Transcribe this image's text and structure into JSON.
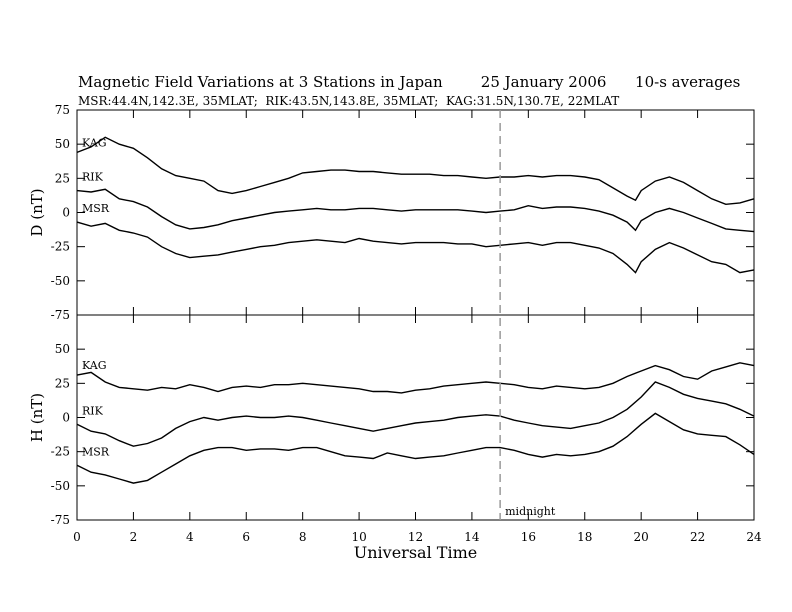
{
  "title": "Magnetic Field Variations at 3 Stations in Japan        25 January 2006      10-s averages",
  "subtitle": "MSR:44.4N,142.3E, 35MLAT;  RIK:43.5N,143.8E, 35MLAT;  KAG:31.5N,130.7E, 22MLAT",
  "chart_data": {
    "type": "line",
    "xlabel": "Universal Time",
    "xlim": [
      0,
      24
    ],
    "xticks": [
      0,
      2,
      4,
      6,
      8,
      10,
      12,
      14,
      16,
      18,
      20,
      22,
      24
    ],
    "annotation": {
      "text": "midnight",
      "x": 15
    },
    "panels": [
      {
        "ylabel": "D (nT)",
        "ylim": [
          -75,
          75
        ],
        "yticks": [
          75,
          50,
          25,
          0,
          -25,
          -50,
          -75
        ],
        "series": [
          {
            "name": "KAG",
            "x": [
              0,
              0.5,
              1,
              1.5,
              2,
              2.5,
              3,
              3.5,
              4,
              4.5,
              5,
              5.5,
              6,
              6.5,
              7,
              7.5,
              8,
              8.5,
              9,
              9.5,
              10,
              10.5,
              11,
              11.5,
              12,
              12.5,
              13,
              13.5,
              14,
              14.5,
              15,
              15.5,
              16,
              16.5,
              17,
              17.5,
              18,
              18.5,
              19,
              19.5,
              19.8,
              20,
              20.5,
              21,
              21.5,
              22,
              22.5,
              23,
              23.5,
              24
            ],
            "values": [
              44,
              48,
              55,
              50,
              47,
              40,
              32,
              27,
              25,
              23,
              16,
              14,
              16,
              19,
              22,
              25,
              29,
              30,
              31,
              31,
              30,
              30,
              29,
              28,
              28,
              28,
              27,
              27,
              26,
              25,
              26,
              26,
              27,
              26,
              27,
              27,
              26,
              24,
              18,
              12,
              9,
              16,
              23,
              26,
              22,
              16,
              10,
              6,
              7,
              10
            ]
          },
          {
            "name": "RIK",
            "x": [
              0,
              0.5,
              1,
              1.5,
              2,
              2.5,
              3,
              3.5,
              4,
              4.5,
              5,
              5.5,
              6,
              6.5,
              7,
              7.5,
              8,
              8.5,
              9,
              9.5,
              10,
              10.5,
              11,
              11.5,
              12,
              12.5,
              13,
              13.5,
              14,
              14.5,
              15,
              15.5,
              16,
              16.5,
              17,
              17.5,
              18,
              18.5,
              19,
              19.5,
              19.8,
              20,
              20.5,
              21,
              21.5,
              22,
              22.5,
              23,
              23.5,
              24
            ],
            "values": [
              16,
              15,
              17,
              10,
              8,
              4,
              -3,
              -9,
              -12,
              -11,
              -9,
              -6,
              -4,
              -2,
              0,
              1,
              2,
              3,
              2,
              2,
              3,
              3,
              2,
              1,
              2,
              2,
              2,
              2,
              1,
              0,
              1,
              2,
              5,
              3,
              4,
              4,
              3,
              1,
              -2,
              -7,
              -13,
              -6,
              0,
              3,
              0,
              -4,
              -8,
              -12,
              -13,
              -14
            ]
          },
          {
            "name": "MSR",
            "x": [
              0,
              0.5,
              1,
              1.5,
              2,
              2.5,
              3,
              3.5,
              4,
              4.5,
              5,
              5.5,
              6,
              6.5,
              7,
              7.5,
              8,
              8.5,
              9,
              9.5,
              10,
              10.5,
              11,
              11.5,
              12,
              12.5,
              13,
              13.5,
              14,
              14.5,
              15,
              15.5,
              16,
              16.5,
              17,
              17.5,
              18,
              18.5,
              19,
              19.5,
              19.8,
              20,
              20.5,
              21,
              21.5,
              22,
              22.5,
              23,
              23.5,
              24
            ],
            "values": [
              -7,
              -10,
              -8,
              -13,
              -15,
              -18,
              -25,
              -30,
              -33,
              -32,
              -31,
              -29,
              -27,
              -25,
              -24,
              -22,
              -21,
              -20,
              -21,
              -22,
              -19,
              -21,
              -22,
              -23,
              -22,
              -22,
              -22,
              -23,
              -23,
              -25,
              -24,
              -23,
              -22,
              -24,
              -22,
              -22,
              -24,
              -26,
              -30,
              -38,
              -44,
              -36,
              -27,
              -22,
              -26,
              -31,
              -36,
              -38,
              -44,
              -42
            ]
          }
        ]
      },
      {
        "ylabel": "H (nT)",
        "ylim": [
          -75,
          75
        ],
        "yticks": [
          75,
          50,
          25,
          0,
          -25,
          -50,
          -75
        ],
        "series": [
          {
            "name": "KAG",
            "x": [
              0,
              0.5,
              1,
              1.5,
              2,
              2.5,
              3,
              3.5,
              4,
              4.5,
              5,
              5.5,
              6,
              6.5,
              7,
              7.5,
              8,
              8.5,
              9,
              9.5,
              10,
              10.5,
              11,
              11.5,
              12,
              12.5,
              13,
              13.5,
              14,
              14.5,
              15,
              15.5,
              16,
              16.5,
              17,
              17.5,
              18,
              18.5,
              19,
              19.5,
              20,
              20.5,
              21,
              21.5,
              22,
              22.5,
              23,
              23.5,
              24
            ],
            "values": [
              31,
              33,
              26,
              22,
              21,
              20,
              22,
              21,
              24,
              22,
              19,
              22,
              23,
              22,
              24,
              24,
              25,
              24,
              23,
              22,
              21,
              19,
              19,
              18,
              20,
              21,
              23,
              24,
              25,
              26,
              25,
              24,
              22,
              21,
              23,
              22,
              21,
              22,
              25,
              30,
              34,
              38,
              35,
              30,
              28,
              34,
              37,
              40,
              38
            ]
          },
          {
            "name": "RIK",
            "x": [
              0,
              0.5,
              1,
              1.5,
              2,
              2.5,
              3,
              3.5,
              4,
              4.5,
              5,
              5.5,
              6,
              6.5,
              7,
              7.5,
              8,
              8.5,
              9,
              9.5,
              10,
              10.5,
              11,
              11.5,
              12,
              12.5,
              13,
              13.5,
              14,
              14.5,
              15,
              15.5,
              16,
              16.5,
              17,
              17.5,
              18,
              18.5,
              19,
              19.5,
              20,
              20.5,
              21,
              21.5,
              22,
              22.5,
              23,
              23.5,
              24
            ],
            "values": [
              -5,
              -10,
              -12,
              -17,
              -21,
              -19,
              -15,
              -8,
              -3,
              0,
              -2,
              0,
              1,
              0,
              0,
              1,
              0,
              -2,
              -4,
              -6,
              -8,
              -10,
              -8,
              -6,
              -4,
              -3,
              -2,
              0,
              1,
              2,
              1,
              -2,
              -4,
              -6,
              -7,
              -8,
              -6,
              -4,
              0,
              6,
              15,
              26,
              22,
              17,
              14,
              12,
              10,
              6,
              1
            ]
          },
          {
            "name": "MSR",
            "x": [
              0,
              0.5,
              1,
              1.5,
              2,
              2.5,
              3,
              3.5,
              4,
              4.5,
              5,
              5.5,
              6,
              6.5,
              7,
              7.5,
              8,
              8.5,
              9,
              9.5,
              10,
              10.5,
              11,
              11.5,
              12,
              12.5,
              13,
              13.5,
              14,
              14.5,
              15,
              15.5,
              16,
              16.5,
              17,
              17.5,
              18,
              18.5,
              19,
              19.5,
              20,
              20.5,
              21,
              21.5,
              22,
              22.5,
              23,
              23.5,
              24
            ],
            "values": [
              -35,
              -40,
              -42,
              -45,
              -48,
              -46,
              -40,
              -34,
              -28,
              -24,
              -22,
              -22,
              -24,
              -23,
              -23,
              -24,
              -22,
              -22,
              -25,
              -28,
              -29,
              -30,
              -26,
              -28,
              -30,
              -29,
              -28,
              -26,
              -24,
              -22,
              -22,
              -24,
              -27,
              -29,
              -27,
              -28,
              -27,
              -25,
              -21,
              -14,
              -5,
              3,
              -3,
              -9,
              -12,
              -13,
              -14,
              -20,
              -27
            ]
          }
        ]
      }
    ]
  }
}
